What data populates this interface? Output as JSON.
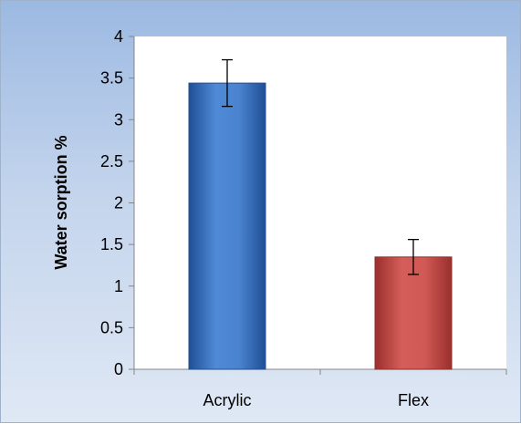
{
  "chart_data": {
    "type": "bar",
    "categories": [
      "Acrylic",
      "Flex"
    ],
    "values": [
      3.44,
      1.35
    ],
    "error": [
      0.28,
      0.21
    ],
    "ylabel": "Water sorption %",
    "xlabel": "",
    "ylim": [
      0,
      4
    ],
    "yticks": [
      "0",
      "0.5",
      "1",
      "1.5",
      "2",
      "2.5",
      "3",
      "3.5",
      "4"
    ],
    "grid": false,
    "legend": "none",
    "colors": [
      "#3e78c4",
      "#c9504c"
    ]
  }
}
